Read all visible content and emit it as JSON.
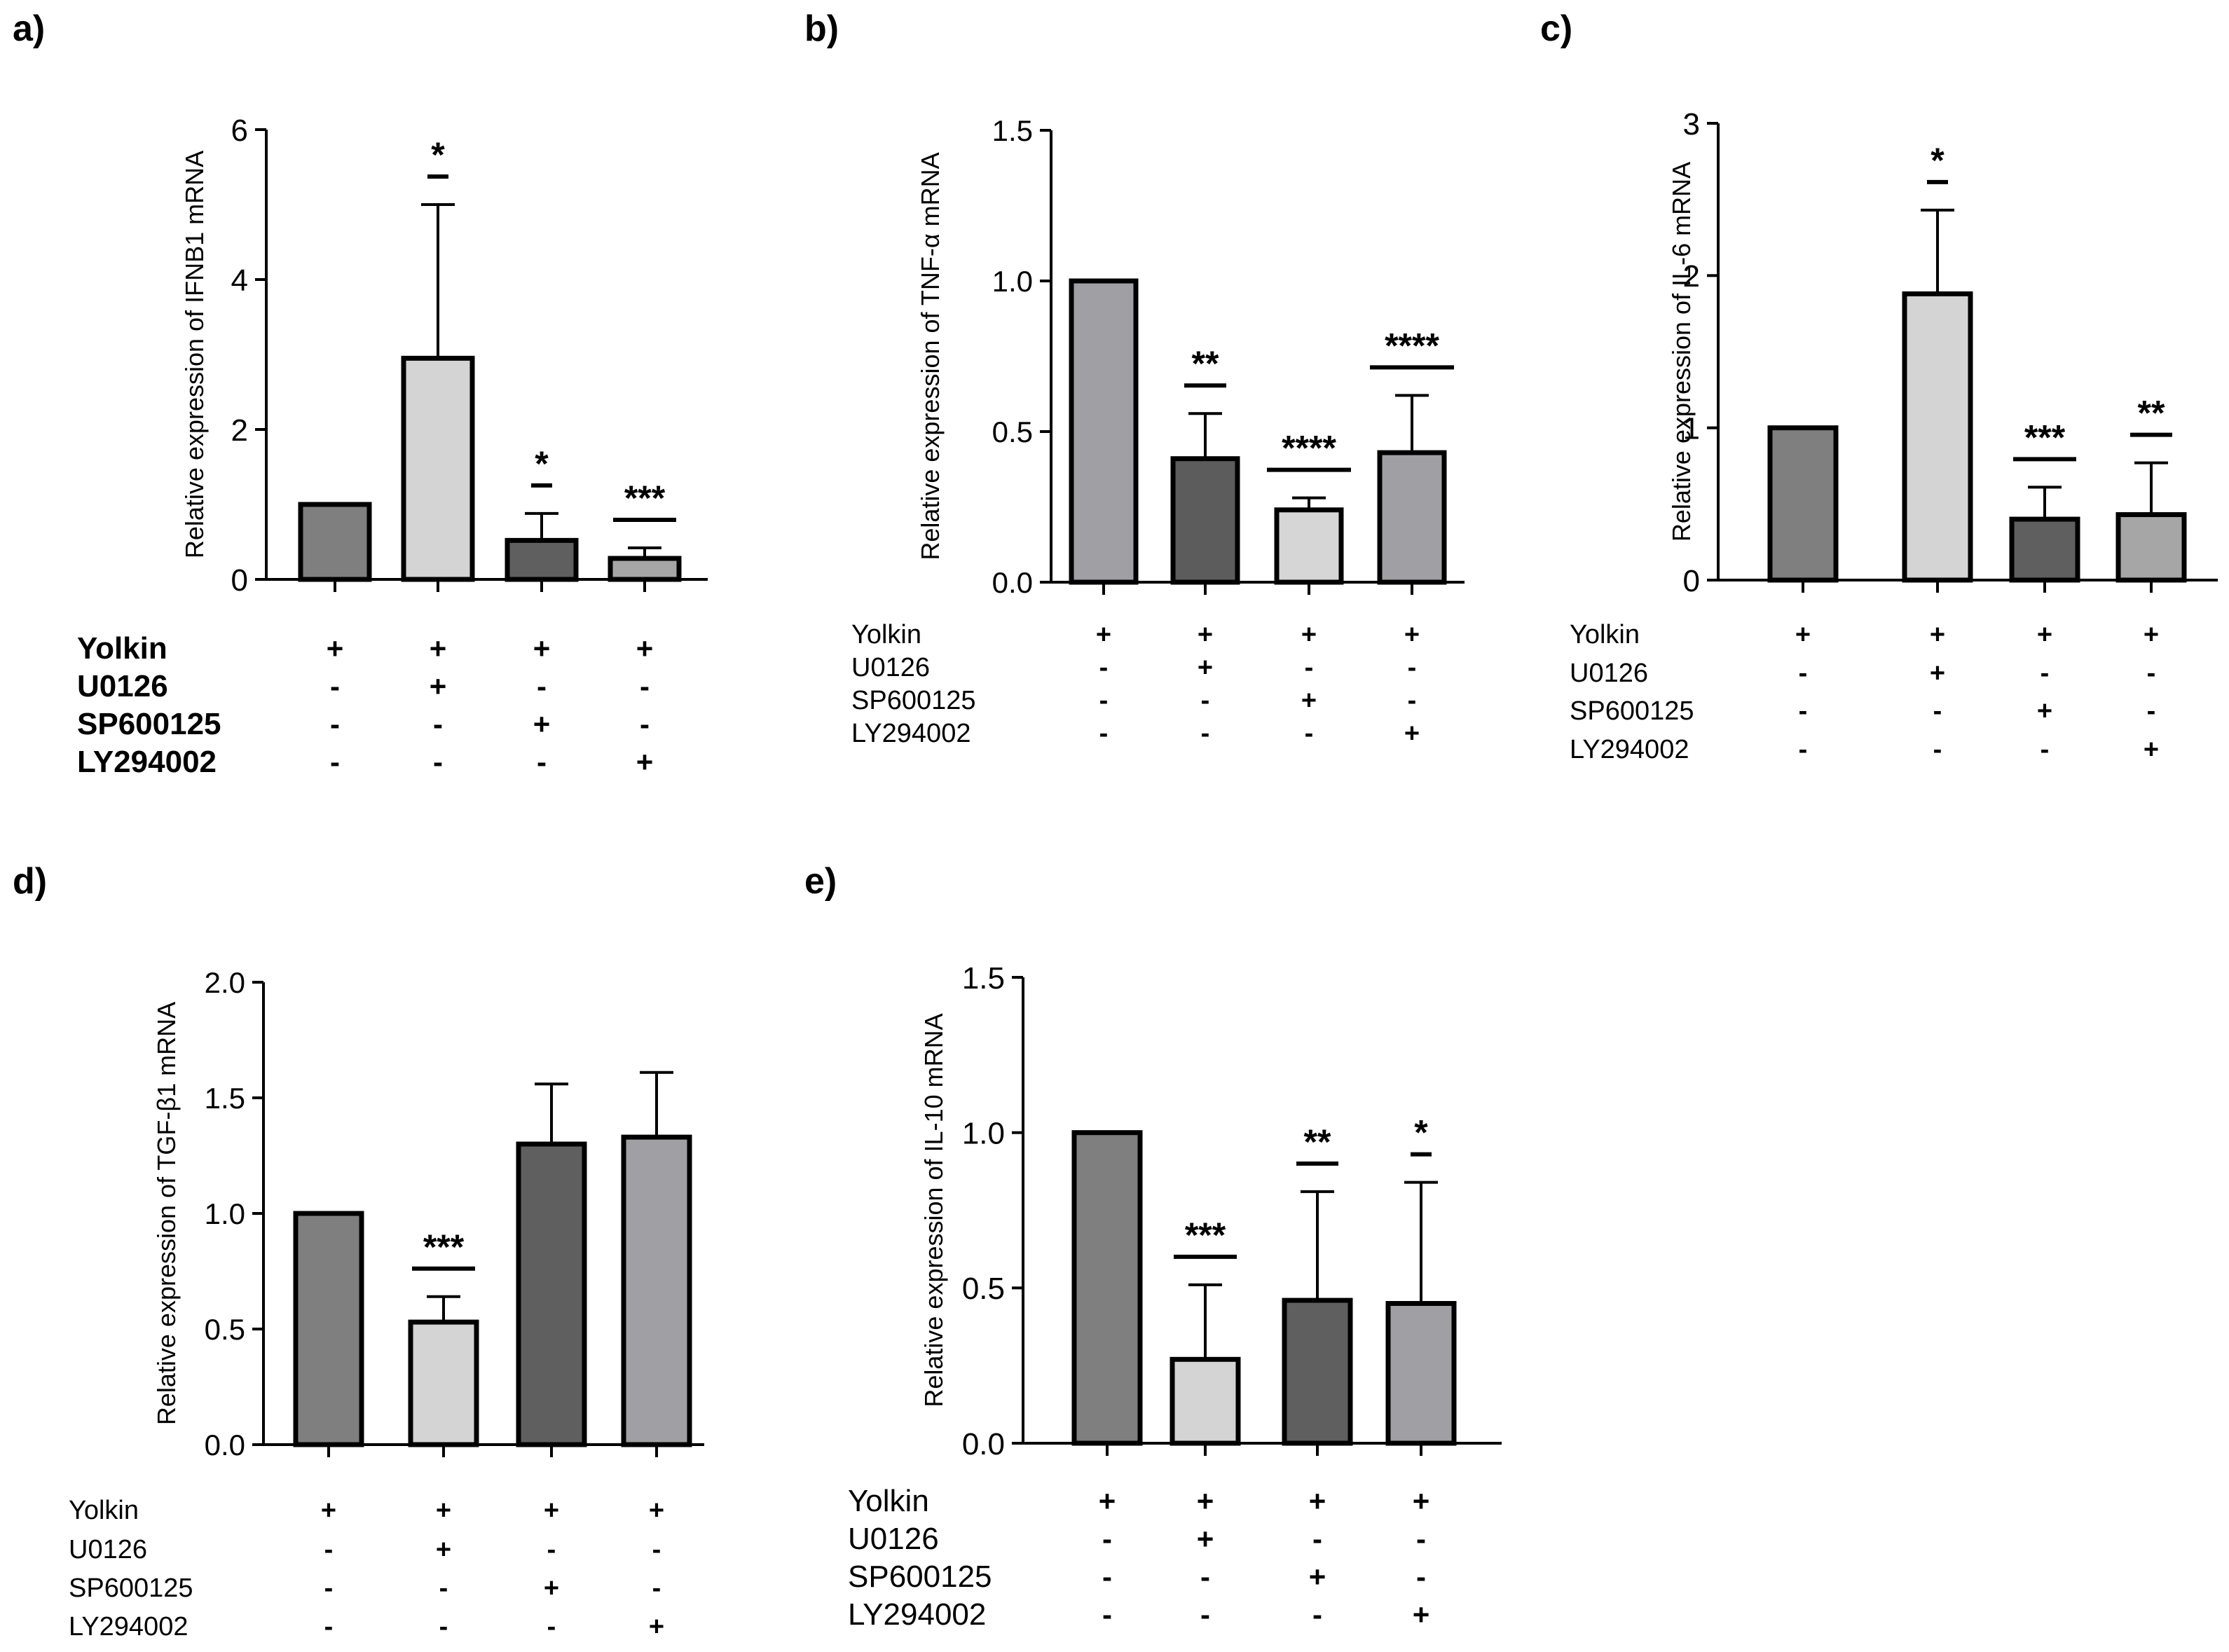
{
  "figure": {
    "condition_rows": [
      "Yolkin",
      "U0126",
      "SP600125",
      "LY294002"
    ],
    "treatment_signs": [
      [
        "+",
        "+",
        "+",
        "+"
      ],
      [
        "-",
        "+",
        "-",
        "-"
      ],
      [
        "-",
        "-",
        "+",
        "-"
      ],
      [
        "-",
        "-",
        "-",
        "+"
      ]
    ]
  },
  "chart_data": [
    {
      "panel": "a)",
      "type": "bar",
      "ylabel": "Relative expression of IFNB1 mRNA",
      "ylim": [
        0,
        6
      ],
      "yticks": [
        0,
        2,
        4,
        6
      ],
      "yticklabels": [
        "0",
        "2",
        "4",
        "6"
      ],
      "values": [
        1.0,
        2.95,
        0.52,
        0.28
      ],
      "error_upper": [
        null,
        5.0,
        0.88,
        0.42
      ],
      "significance": [
        "",
        "*",
        "*",
        "***"
      ],
      "colors": [
        "#7f7f7f",
        "#d4d4d4",
        "#5f5f5f",
        "#a6a6a6"
      ]
    },
    {
      "panel": "b)",
      "type": "bar",
      "ylabel": "Relative expression of TNF-α mRNA",
      "ylim": [
        0,
        1.5
      ],
      "yticks": [
        0,
        0.5,
        1.0,
        1.5
      ],
      "yticklabels": [
        "0.0",
        "0.5",
        "1.0",
        "1.5"
      ],
      "values": [
        1.0,
        0.41,
        0.24,
        0.43
      ],
      "error_upper": [
        null,
        0.56,
        0.28,
        0.62
      ],
      "significance": [
        "",
        "**",
        "****",
        "****"
      ],
      "colors": [
        "#a0a0a4",
        "#5c5c5c",
        "#d6d6d6",
        "#a0a0a4"
      ]
    },
    {
      "panel": "c)",
      "type": "bar",
      "ylabel": "Relative expression of IL-6 mRNA",
      "ylim": [
        0,
        3
      ],
      "yticks": [
        0,
        1,
        2,
        3
      ],
      "yticklabels": [
        "0",
        "1",
        "2",
        "3"
      ],
      "values": [
        1.0,
        1.88,
        0.4,
        0.43
      ],
      "error_upper": [
        null,
        2.43,
        0.61,
        0.77
      ],
      "significance": [
        "",
        "*",
        "***",
        "**"
      ],
      "colors": [
        "#7f7f7f",
        "#d4d4d4",
        "#5f5f5f",
        "#a6a6a6"
      ]
    },
    {
      "panel": "d)",
      "type": "bar",
      "ylabel": "Relative expression of TGF-β1 mRNA",
      "ylim": [
        0,
        2.0
      ],
      "yticks": [
        0,
        0.5,
        1.0,
        1.5,
        2.0
      ],
      "yticklabels": [
        "0.0",
        "0.5",
        "1.0",
        "1.5",
        "2.0"
      ],
      "values": [
        1.0,
        0.53,
        1.3,
        1.33
      ],
      "error_upper": [
        null,
        0.64,
        1.56,
        1.61
      ],
      "significance": [
        "",
        "***",
        "",
        ""
      ],
      "colors": [
        "#7f7f7f",
        "#d4d4d4",
        "#5f5f5f",
        "#a0a0a4"
      ]
    },
    {
      "panel": "e)",
      "type": "bar",
      "ylabel": "Relative expression of IL-10 mRNA",
      "ylim": [
        0,
        1.5
      ],
      "yticks": [
        0,
        0.5,
        1.0,
        1.5
      ],
      "yticklabels": [
        "0.0",
        "0.5",
        "1.0",
        "1.5"
      ],
      "values": [
        1.0,
        0.27,
        0.46,
        0.45
      ],
      "error_upper": [
        null,
        0.51,
        0.81,
        0.84
      ],
      "significance": [
        "",
        "***",
        "**",
        "*"
      ],
      "colors": [
        "#7f7f7f",
        "#d4d4d4",
        "#5f5f5f",
        "#a0a0a4"
      ]
    }
  ]
}
